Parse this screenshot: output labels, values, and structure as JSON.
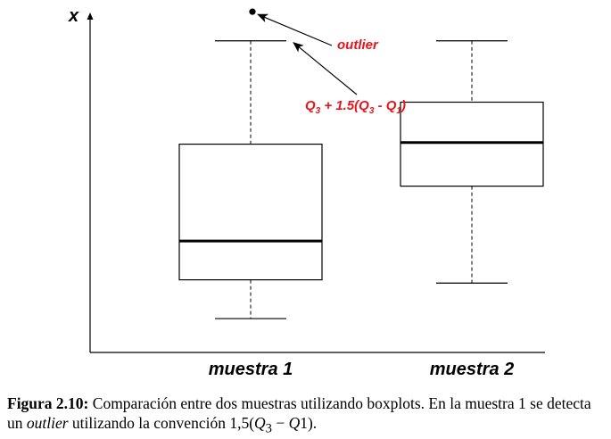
{
  "chart_data": {
    "type": "boxplot",
    "ylabel": "x",
    "ylim": [
      -1.4,
      8.6
    ],
    "categories": [
      "muestra 1",
      "muestra 2"
    ],
    "boxes": [
      {
        "name": "muestra 1",
        "whisker_low": -0.6,
        "q1": 0.6,
        "median": 1.8,
        "q3": 4.8,
        "whisker_high": 8.0,
        "outliers": [
          8.9
        ]
      },
      {
        "name": "muestra 2",
        "whisker_low": 0.5,
        "q1": 3.5,
        "median": 4.85,
        "q3": 6.1,
        "whisker_high": 8.0,
        "outliers": []
      }
    ],
    "annotations": {
      "outlier": "outlier",
      "fence_parts": [
        "Q",
        "3",
        " + 1.5(Q",
        "3",
        " - Q",
        "1",
        ")"
      ]
    }
  },
  "caption": {
    "label": "Figura 2.10:",
    "text1": " Comparación entre dos muestras utilizando boxplots. En la muestra 1 se detecta un ",
    "italic": "outlier",
    "text2": " utilizando la convención 1,5(",
    "math_parts": [
      "Q",
      "3",
      " − ",
      "Q",
      "1",
      ")."
    ]
  }
}
